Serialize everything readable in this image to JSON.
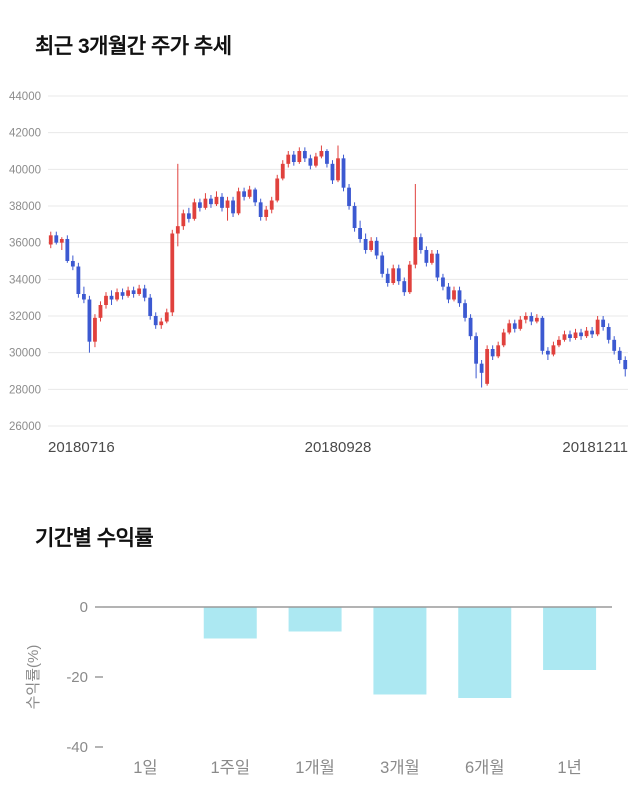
{
  "chart_data": [
    {
      "type": "candlestick",
      "title": "최근 3개월간 주가 추세",
      "ylim": [
        26000,
        44000
      ],
      "y_ticks": [
        26000,
        28000,
        30000,
        32000,
        34000,
        36000,
        38000,
        40000,
        42000,
        44000
      ],
      "x_tick_labels": [
        "20180716",
        "20180928",
        "20181211"
      ],
      "grid": true,
      "up_color": "#e0413d",
      "down_color": "#3c59d1",
      "grid_color": "#e8e8e8",
      "ytick_color": "#8c8c8c",
      "xtick_color": "#4a4a4a",
      "candles_ohlc": [
        [
          35900,
          36600,
          35700,
          36400
        ],
        [
          36400,
          36600,
          35900,
          36000
        ],
        [
          36000,
          36300,
          35600,
          36200
        ],
        [
          36200,
          36400,
          34900,
          35000
        ],
        [
          35000,
          35300,
          34500,
          34700
        ],
        [
          34700,
          34900,
          33000,
          33200
        ],
        [
          33200,
          33600,
          32700,
          32900
        ],
        [
          32900,
          33100,
          30000,
          30600
        ],
        [
          30600,
          32100,
          30300,
          31900
        ],
        [
          31900,
          32800,
          31700,
          32600
        ],
        [
          32600,
          33300,
          32400,
          33100
        ],
        [
          33100,
          33400,
          32600,
          32900
        ],
        [
          32900,
          33500,
          32800,
          33300
        ],
        [
          33300,
          33500,
          32900,
          33100
        ],
        [
          33100,
          33600,
          33000,
          33400
        ],
        [
          33400,
          33600,
          33000,
          33200
        ],
        [
          33200,
          33700,
          33100,
          33500
        ],
        [
          33500,
          33700,
          32800,
          33000
        ],
        [
          33000,
          33200,
          31800,
          32000
        ],
        [
          32000,
          32200,
          31300,
          31500
        ],
        [
          31500,
          31900,
          31300,
          31700
        ],
        [
          31700,
          32400,
          31600,
          32200
        ],
        [
          32200,
          36700,
          32000,
          36500
        ],
        [
          36500,
          40300,
          35800,
          36900
        ],
        [
          36900,
          37800,
          36700,
          37600
        ],
        [
          37600,
          37900,
          37100,
          37300
        ],
        [
          37300,
          38400,
          37200,
          38200
        ],
        [
          38200,
          38400,
          37700,
          37900
        ],
        [
          37900,
          38700,
          37800,
          38400
        ],
        [
          38400,
          38600,
          37900,
          38100
        ],
        [
          38100,
          38800,
          38000,
          38500
        ],
        [
          38500,
          38700,
          37700,
          37900
        ],
        [
          37900,
          38500,
          37200,
          38300
        ],
        [
          38300,
          38500,
          37400,
          37600
        ],
        [
          37600,
          39000,
          37500,
          38800
        ],
        [
          38800,
          39000,
          38300,
          38500
        ],
        [
          38500,
          39100,
          38400,
          38900
        ],
        [
          38900,
          39000,
          38000,
          38200
        ],
        [
          38200,
          38400,
          37200,
          37400
        ],
        [
          37400,
          38000,
          37200,
          37800
        ],
        [
          37800,
          38500,
          37600,
          38300
        ],
        [
          38300,
          39700,
          38200,
          39500
        ],
        [
          39500,
          40500,
          39400,
          40300
        ],
        [
          40300,
          41000,
          40100,
          40800
        ],
        [
          40800,
          41000,
          40200,
          40400
        ],
        [
          40400,
          41200,
          40300,
          41000
        ],
        [
          41000,
          41200,
          40400,
          40600
        ],
        [
          40600,
          40800,
          40000,
          40200
        ],
        [
          40200,
          40900,
          40100,
          40700
        ],
        [
          40700,
          41300,
          40600,
          41000
        ],
        [
          41000,
          41100,
          40100,
          40300
        ],
        [
          40300,
          40500,
          39200,
          39400
        ],
        [
          39400,
          41300,
          39300,
          40600
        ],
        [
          40600,
          40800,
          38800,
          39000
        ],
        [
          39000,
          39200,
          37800,
          38000
        ],
        [
          38000,
          38200,
          36600,
          36800
        ],
        [
          36800,
          37200,
          36000,
          36200
        ],
        [
          36200,
          36500,
          35400,
          35600
        ],
        [
          35600,
          36300,
          35500,
          36100
        ],
        [
          36100,
          36300,
          35100,
          35300
        ],
        [
          35300,
          35500,
          34100,
          34300
        ],
        [
          34300,
          34600,
          33600,
          33800
        ],
        [
          33800,
          34800,
          33700,
          34600
        ],
        [
          34600,
          34800,
          33700,
          33900
        ],
        [
          33900,
          34100,
          33100,
          33300
        ],
        [
          33300,
          35000,
          33200,
          34800
        ],
        [
          34800,
          39200,
          34600,
          36300
        ],
        [
          36300,
          36500,
          35400,
          35600
        ],
        [
          35600,
          35800,
          34700,
          34900
        ],
        [
          34900,
          35600,
          34800,
          35400
        ],
        [
          35400,
          35600,
          33900,
          34100
        ],
        [
          34100,
          34300,
          33400,
          33600
        ],
        [
          33600,
          33800,
          32700,
          32900
        ],
        [
          32900,
          33600,
          32800,
          33400
        ],
        [
          33400,
          33600,
          32500,
          32700
        ],
        [
          32700,
          32900,
          31700,
          31900
        ],
        [
          31900,
          32100,
          30700,
          30900
        ],
        [
          30900,
          31100,
          28600,
          29400
        ],
        [
          29400,
          29600,
          28100,
          28900
        ],
        [
          28300,
          30400,
          28200,
          30200
        ],
        [
          30200,
          30400,
          29600,
          29800
        ],
        [
          29800,
          30600,
          29700,
          30400
        ],
        [
          30400,
          31300,
          30300,
          31100
        ],
        [
          31100,
          31800,
          31000,
          31600
        ],
        [
          31600,
          31800,
          31100,
          31300
        ],
        [
          31300,
          32000,
          31200,
          31800
        ],
        [
          31800,
          32200,
          31600,
          32000
        ],
        [
          32000,
          32200,
          31500,
          31700
        ],
        [
          31700,
          32100,
          31600,
          31900
        ],
        [
          31900,
          32000,
          29900,
          30100
        ],
        [
          30100,
          30300,
          29600,
          29900
        ],
        [
          29900,
          30600,
          29800,
          30400
        ],
        [
          30400,
          30900,
          30300,
          30700
        ],
        [
          30700,
          31200,
          30600,
          31000
        ],
        [
          31000,
          31200,
          30600,
          30800
        ],
        [
          30800,
          31300,
          30700,
          31100
        ],
        [
          31100,
          31300,
          30700,
          30900
        ],
        [
          30900,
          31400,
          30800,
          31200
        ],
        [
          31200,
          31400,
          30800,
          31000
        ],
        [
          31000,
          32000,
          30900,
          31800
        ],
        [
          31800,
          32000,
          31200,
          31400
        ],
        [
          31400,
          31600,
          30500,
          30700
        ],
        [
          30700,
          30900,
          29900,
          30100
        ],
        [
          30100,
          30300,
          29400,
          29600
        ],
        [
          29600,
          29800,
          28700,
          29100
        ]
      ]
    },
    {
      "type": "bar",
      "title": "기간별 수익률",
      "ylabel": "수익률(%)",
      "categories": [
        "1일",
        "1주일",
        "1개월",
        "3개월",
        "6개월",
        "1년"
      ],
      "values": [
        0,
        -9,
        -7,
        -25,
        -26,
        -18
      ],
      "ylim": [
        -40,
        0
      ],
      "y_ticks": [
        0,
        -20,
        -40
      ],
      "bar_color": "#ace8f2",
      "axis_color": "#9a9a9a",
      "text_color": "#8a8a8a"
    }
  ]
}
